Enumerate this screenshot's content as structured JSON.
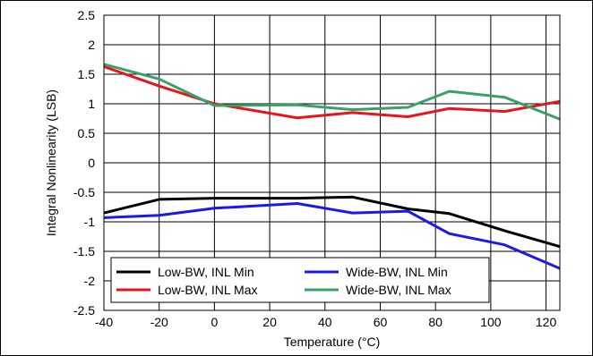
{
  "chart_data": {
    "type": "line",
    "xlabel": "Temperature (°C)",
    "ylabel": "Integral Nonlinearity (LSB)",
    "xlim": [
      -40,
      125
    ],
    "ylim": [
      -2.5,
      2.5
    ],
    "xticks": [
      -40,
      -20,
      0,
      20,
      40,
      60,
      80,
      100,
      120
    ],
    "yticks": [
      2.5,
      2,
      1.5,
      1,
      0.5,
      0,
      -0.5,
      -1,
      -1.5,
      -2,
      -2.5
    ],
    "grid": true,
    "legend_position": "bottom-left",
    "series": [
      {
        "name": "Low-BW, INL Min",
        "color": "#000000",
        "x": [
          -40,
          -20,
          0,
          30,
          50,
          70,
          85,
          105,
          125
        ],
        "y": [
          -0.85,
          -0.62,
          -0.6,
          -0.6,
          -0.58,
          -0.78,
          -0.86,
          -1.15,
          -1.42
        ]
      },
      {
        "name": "Low-BW, INL Max",
        "color": "#e8141b",
        "x": [
          -40,
          -20,
          0,
          30,
          50,
          70,
          85,
          105,
          125
        ],
        "y": [
          1.63,
          1.3,
          1.0,
          0.76,
          0.85,
          0.78,
          0.92,
          0.87,
          1.04
        ]
      },
      {
        "name": "Wide-BW, INL Min",
        "color": "#1a1ae6",
        "x": [
          -40,
          -20,
          0,
          30,
          50,
          70,
          85,
          105,
          125
        ],
        "y": [
          -0.93,
          -0.89,
          -0.77,
          -0.69,
          -0.85,
          -0.82,
          -1.2,
          -1.39,
          -1.79
        ]
      },
      {
        "name": "Wide-BW, INL Max",
        "color": "#3aa06a",
        "x": [
          -40,
          -20,
          0,
          30,
          50,
          70,
          85,
          105,
          125
        ],
        "y": [
          1.67,
          1.42,
          0.97,
          0.98,
          0.9,
          0.94,
          1.21,
          1.11,
          0.74
        ]
      }
    ]
  }
}
